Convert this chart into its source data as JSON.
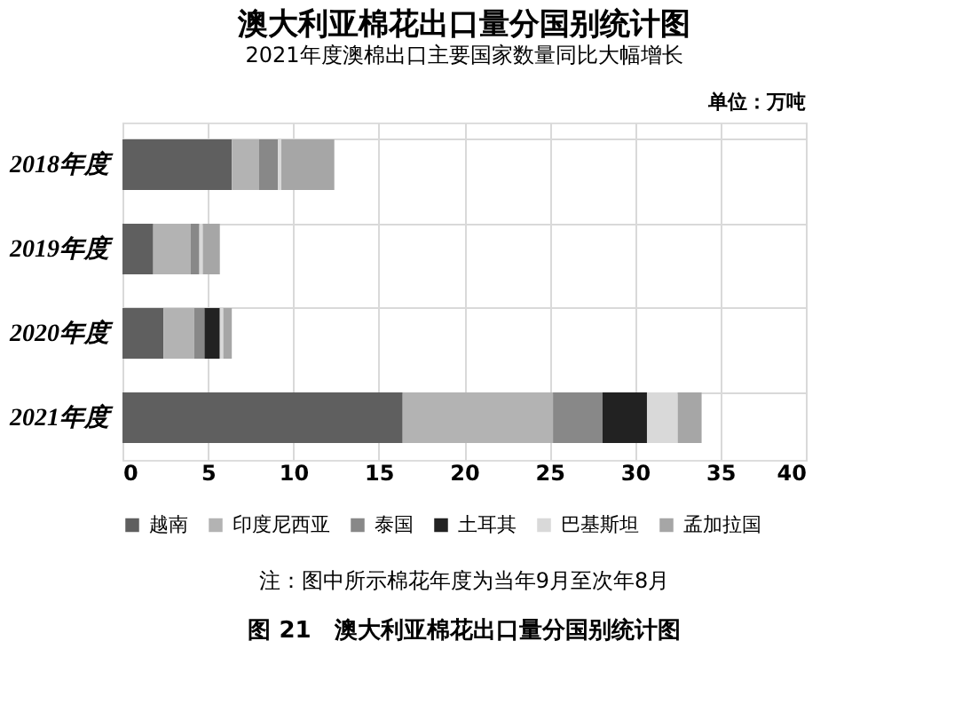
{
  "chart_data": {
    "type": "bar",
    "orientation": "horizontal",
    "stacked": true,
    "title": "澳大利亚棉花出口量分国别统计图",
    "subtitle": "2021年度澳棉出口主要国家数量同比大幅增长",
    "categories": [
      "2018年度",
      "2019年度",
      "2020年度",
      "2021年度"
    ],
    "series": [
      {
        "name": "越南",
        "color": "#5f5f5f",
        "values": [
          6.4,
          1.8,
          2.4,
          16.4
        ]
      },
      {
        "name": "印度尼西亚",
        "color": "#b3b3b3",
        "values": [
          1.6,
          2.2,
          1.8,
          8.8
        ]
      },
      {
        "name": "泰国",
        "color": "#888888",
        "values": [
          1.1,
          0.5,
          0.6,
          2.9
        ]
      },
      {
        "name": "土耳其",
        "color": "#222222",
        "values": [
          null,
          null,
          0.9,
          2.6
        ]
      },
      {
        "name": "巴基斯坦",
        "color": "#d9d9d9",
        "values": [
          0.2,
          0.2,
          0.2,
          1.8
        ]
      },
      {
        "name": "孟加拉国",
        "color": "#a6a6a6",
        "values": [
          3.1,
          1.0,
          0.5,
          1.4
        ]
      }
    ],
    "xlim": [
      0,
      40
    ],
    "xticks": [
      0,
      5,
      10,
      15,
      20,
      25,
      30,
      35,
      40
    ],
    "grid": true,
    "legend": "bottom",
    "annotations": [
      "单位：万吨",
      "注：图中所示棉花年度为当年9月至次年8月",
      "图 21　澳大利亚棉花出口量分国别统计图"
    ]
  }
}
